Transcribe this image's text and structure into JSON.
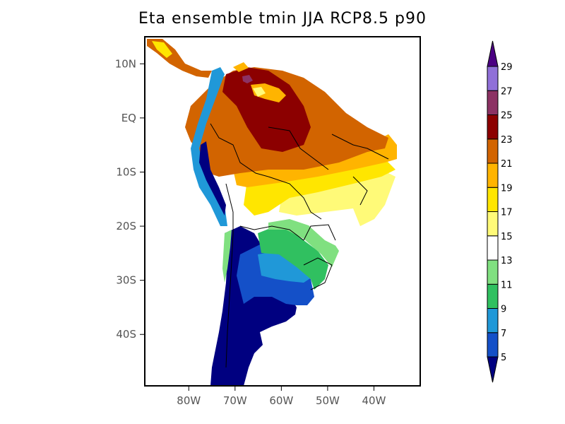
{
  "title": "Eta ensemble tmin JJA RCP8.5 p90",
  "map": {
    "lat_ticks": [
      "10N",
      "EQ",
      "10S",
      "20S",
      "30S",
      "40S"
    ],
    "lat_values": [
      10,
      0,
      -10,
      -20,
      -30,
      -40
    ],
    "lon_ticks": [
      "80W",
      "70W",
      "60W",
      "50W",
      "40W"
    ],
    "lon_values": [
      -80,
      -70,
      -60,
      -50,
      -40
    ],
    "lon_range": [
      -89.5,
      -30
    ],
    "lat_range": [
      -49.5,
      15
    ]
  },
  "colorbar": {
    "levels": [
      "5",
      "7",
      "9",
      "11",
      "13",
      "15",
      "17",
      "19",
      "21",
      "23",
      "25",
      "27",
      "29"
    ],
    "colors": [
      "#000080",
      "#1450c8",
      "#2098d8",
      "#30c060",
      "#80e080",
      "#ffffff",
      "#fffa78",
      "#ffe600",
      "#ffb400",
      "#d26400",
      "#8c0000",
      "#8c3264",
      "#9070d8",
      "#4b0082"
    ]
  }
}
